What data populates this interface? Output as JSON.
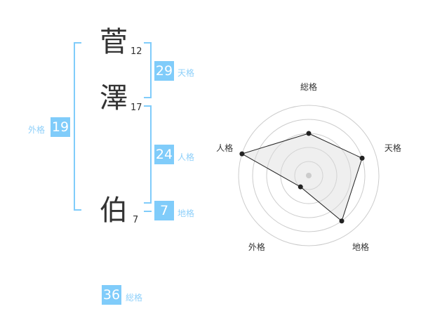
{
  "name": {
    "chars": [
      {
        "char": "菅",
        "strokes": "12"
      },
      {
        "char": "澤",
        "strokes": "17"
      },
      {
        "char": "伯",
        "strokes": "7"
      }
    ]
  },
  "kaku": {
    "tenkaku": {
      "value": "29",
      "label": "天格"
    },
    "jinkaku": {
      "value": "24",
      "label": "人格"
    },
    "chikaku": {
      "value": "7",
      "label": "地格"
    },
    "gaikaku": {
      "value": "19",
      "label": "外格"
    },
    "soukaku": {
      "value": "36",
      "label": "総格"
    }
  },
  "colors": {
    "accent": "#80ccfa",
    "label": "#8fd0fa"
  },
  "chart_data": {
    "type": "radar",
    "axes": [
      "総格",
      "天格",
      "地格",
      "外格",
      "人格"
    ],
    "values": [
      3,
      4,
      4,
      1,
      5
    ],
    "range": [
      0,
      5
    ],
    "rings": 5
  }
}
